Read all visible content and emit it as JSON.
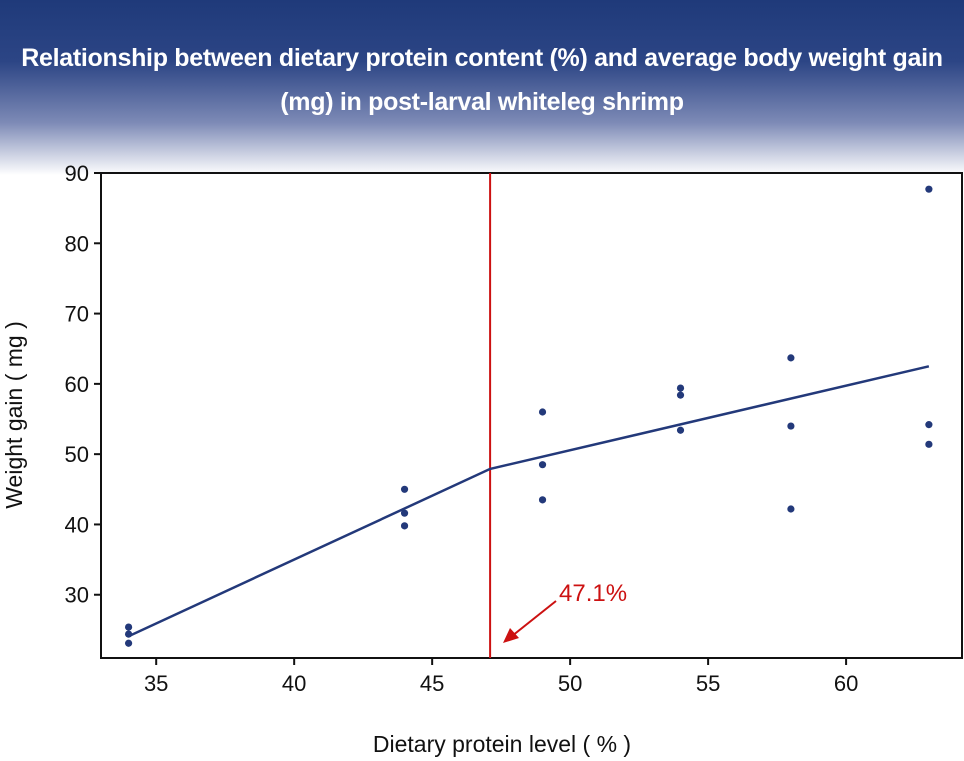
{
  "chart_data": {
    "type": "scatter",
    "title": "Relationship between dietary protein content (%) and average body weight gain (mg) in post-larval whiteleg shrimp",
    "xlabel": "Dietary protein level ( % )",
    "ylabel": "Weight gain ( mg )",
    "xlim": [
      33,
      64.2
    ],
    "ylim": [
      21,
      90
    ],
    "xticks": [
      35,
      40,
      45,
      50,
      55,
      60
    ],
    "yticks": [
      30,
      40,
      50,
      60,
      70,
      80,
      90
    ],
    "grid": false,
    "points": [
      {
        "x": 34,
        "y": 25.4
      },
      {
        "x": 34,
        "y": 24.4
      },
      {
        "x": 34,
        "y": 23.1
      },
      {
        "x": 44,
        "y": 45.0
      },
      {
        "x": 44,
        "y": 41.6
      },
      {
        "x": 44,
        "y": 39.8
      },
      {
        "x": 49,
        "y": 56.0
      },
      {
        "x": 49,
        "y": 48.5
      },
      {
        "x": 49,
        "y": 43.5
      },
      {
        "x": 54,
        "y": 59.4
      },
      {
        "x": 54,
        "y": 58.4
      },
      {
        "x": 54,
        "y": 53.4
      },
      {
        "x": 58,
        "y": 63.7
      },
      {
        "x": 58,
        "y": 54.0
      },
      {
        "x": 58,
        "y": 42.2
      },
      {
        "x": 63,
        "y": 87.7
      },
      {
        "x": 63,
        "y": 54.2
      },
      {
        "x": 63,
        "y": 51.4
      }
    ],
    "fit_line": [
      {
        "x": 34,
        "y": 24.1
      },
      {
        "x": 47.1,
        "y": 47.9
      },
      {
        "x": 63,
        "y": 62.5
      }
    ],
    "breakpoint": {
      "x": 47.1,
      "label": "47.1%"
    },
    "colors": {
      "points": "#23397a",
      "line": "#23397a",
      "breakpoint": "#cc1111",
      "header": "#1f3a7a"
    }
  }
}
